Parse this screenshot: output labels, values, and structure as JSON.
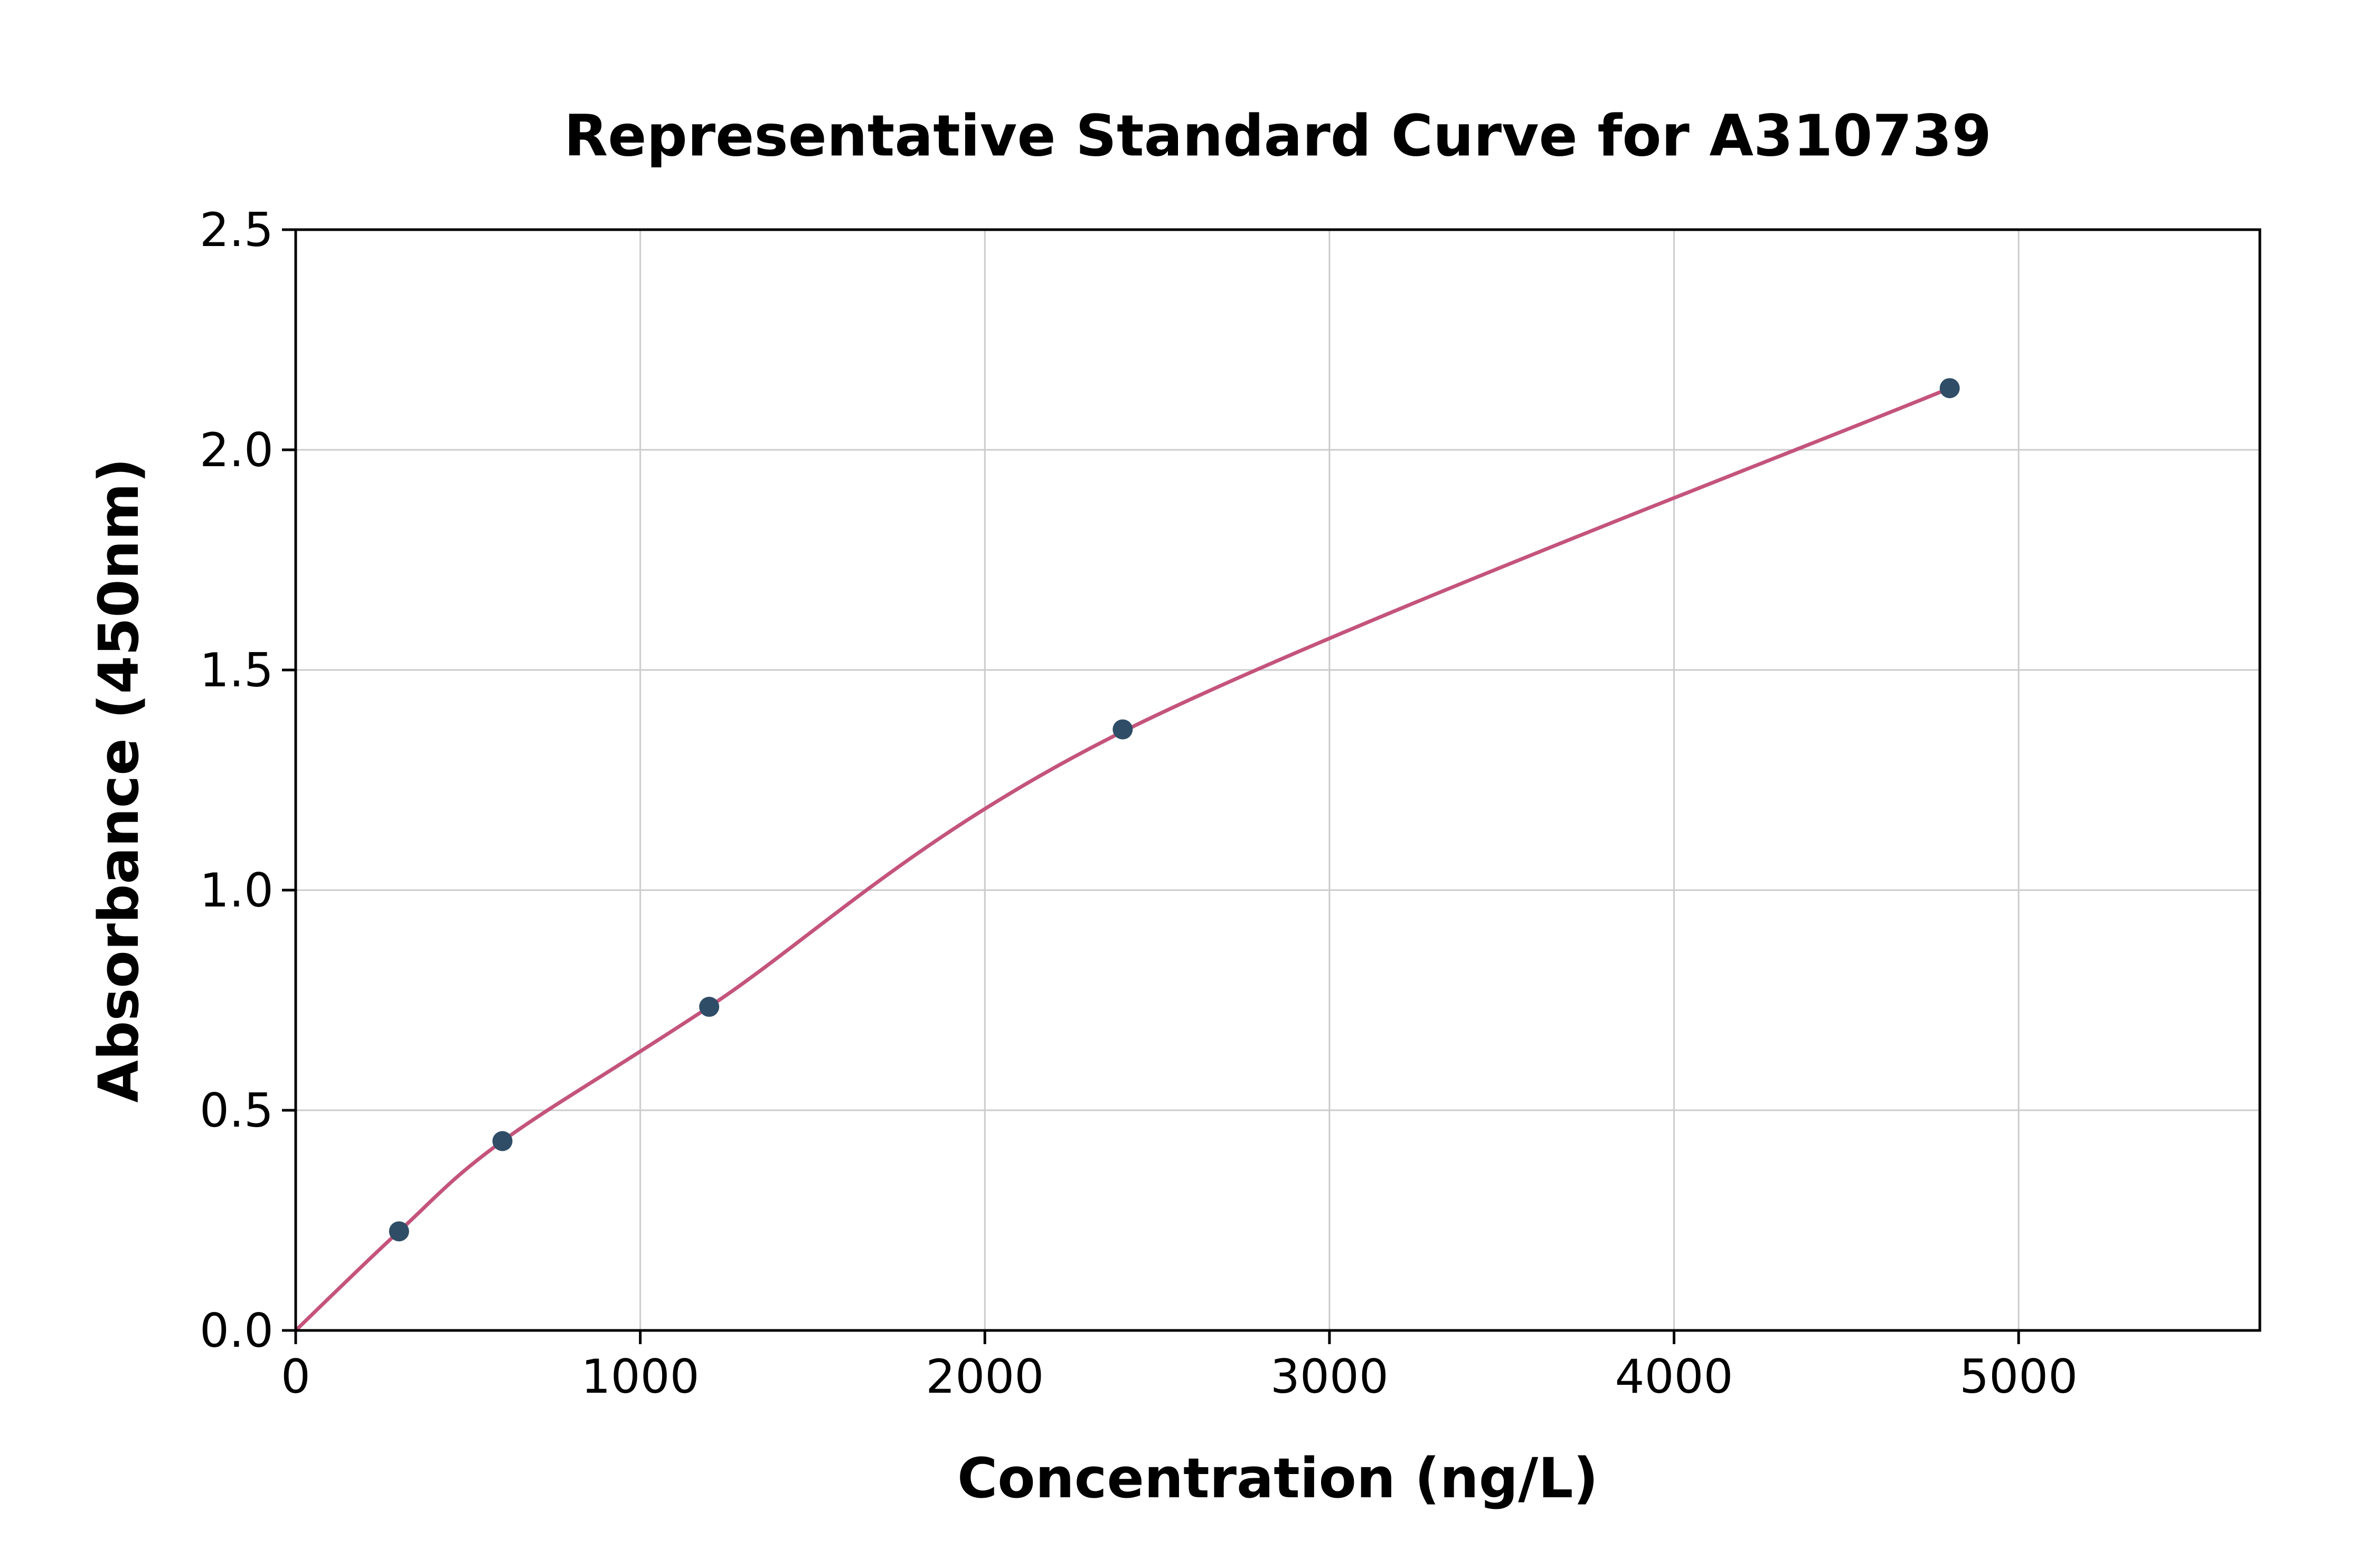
{
  "chart_data": {
    "type": "scatter",
    "title": "Representative Standard Curve for A310739",
    "xlabel": "Concentration (ng/L)",
    "ylabel": "Absorbance (450nm)",
    "xlim": [
      0,
      5700
    ],
    "ylim": [
      0,
      2.5
    ],
    "xticks": [
      0,
      1000,
      2000,
      3000,
      4000,
      5000
    ],
    "yticks": [
      0.0,
      0.5,
      1.0,
      1.5,
      2.0,
      2.5
    ],
    "grid": true,
    "legend_position": "none",
    "points": {
      "x": [
        300,
        600,
        1200,
        2400,
        4800
      ],
      "y": [
        0.225,
        0.43,
        0.735,
        1.365,
        2.14
      ]
    },
    "curve": {
      "x": [
        0,
        300,
        600,
        1200,
        2400,
        4800
      ],
      "y": [
        0.0,
        0.225,
        0.43,
        0.735,
        1.36,
        2.14
      ]
    },
    "colors": {
      "curve": "#c4547c",
      "point": "#2f4d66",
      "grid": "#cccccc",
      "axis": "#000000",
      "text": "#000000"
    }
  }
}
